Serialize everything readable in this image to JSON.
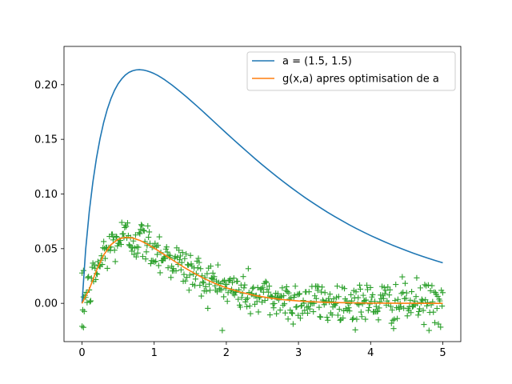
{
  "chart_data": {
    "type": "line",
    "title": "",
    "xlabel": "",
    "ylabel": "",
    "xlim": [
      -0.25,
      5.25
    ],
    "ylim": [
      -0.035,
      0.235
    ],
    "grid": false,
    "legend_position": "top-right",
    "x_ticks": [
      0,
      1,
      2,
      3,
      4,
      5
    ],
    "x_tick_labels": [
      "0",
      "1",
      "2",
      "3",
      "4",
      "5"
    ],
    "y_ticks": [
      0.0,
      0.05,
      0.1,
      0.15,
      0.2
    ],
    "y_tick_labels": [
      "0.00",
      "0.05",
      "0.10",
      "0.15",
      "0.20"
    ],
    "series": [
      {
        "name": "a = (1.5, 1.5)",
        "kind": "line",
        "color": "#1f77b4",
        "x": [
          0,
          0.05,
          0.1,
          0.15,
          0.2,
          0.25,
          0.3,
          0.35,
          0.4,
          0.45,
          0.5,
          0.55,
          0.6,
          0.65,
          0.7,
          0.75,
          0.8,
          0.85,
          0.9,
          0.95,
          1.0,
          1.05,
          1.1,
          1.15,
          1.2,
          1.25,
          1.3,
          1.35,
          1.4,
          1.45,
          1.5,
          1.6,
          1.7,
          1.8,
          1.9,
          2.0,
          2.1,
          2.2,
          2.3,
          2.4,
          2.5,
          2.6,
          2.7,
          2.8,
          2.9,
          3.0,
          3.1,
          3.2,
          3.3,
          3.4,
          3.5,
          3.6,
          3.7,
          3.8,
          3.9,
          4.0,
          4.1,
          4.2,
          4.3,
          4.4,
          4.5,
          4.6,
          4.7,
          4.8,
          4.9,
          5.0
        ],
        "y": [
          0,
          0.049,
          0.0837,
          0.1108,
          0.1328,
          0.1508,
          0.1655,
          0.1775,
          0.1871,
          0.1948,
          0.2008,
          0.2053,
          0.2088,
          0.2112,
          0.2127,
          0.2135,
          0.2137,
          0.2134,
          0.2126,
          0.2115,
          0.2101,
          0.2084,
          0.2064,
          0.2043,
          0.2019,
          0.1995,
          0.1969,
          0.1942,
          0.1915,
          0.1887,
          0.1858,
          0.18,
          0.174,
          0.1679,
          0.1618,
          0.1557,
          0.1497,
          0.1438,
          0.138,
          0.1322,
          0.1266,
          0.1212,
          0.1159,
          0.1108,
          0.1058,
          0.101,
          0.0963,
          0.0919,
          0.0876,
          0.0834,
          0.0795,
          0.0757,
          0.072,
          0.0685,
          0.0652,
          0.062,
          0.059,
          0.0561,
          0.0533,
          0.0507,
          0.0481,
          0.0457,
          0.0434,
          0.0412,
          0.0391,
          0.0371
        ]
      },
      {
        "name": "g(x,a) apres optimisation de a",
        "kind": "line",
        "color": "#ff7f0e",
        "x": [
          0,
          0.1,
          0.2,
          0.3,
          0.4,
          0.5,
          0.6,
          0.7,
          0.8,
          0.9,
          1.0,
          1.1,
          1.2,
          1.3,
          1.4,
          1.5,
          1.6,
          1.7,
          1.8,
          1.9,
          2.0,
          2.2,
          2.4,
          2.6,
          2.8,
          3.0,
          3.2,
          3.4,
          3.6,
          3.8,
          4.0,
          4.2,
          4.4,
          4.6,
          4.8,
          5.0
        ],
        "y": [
          0,
          0.0128,
          0.0301,
          0.0442,
          0.0536,
          0.0586,
          0.0604,
          0.0598,
          0.0576,
          0.0543,
          0.0505,
          0.0463,
          0.042,
          0.0377,
          0.0335,
          0.0296,
          0.0259,
          0.0225,
          0.0194,
          0.0167,
          0.0142,
          0.0102,
          0.0071,
          0.0049,
          0.0033,
          0.0022,
          0.0014,
          0.0009,
          0.0006,
          0.0004,
          0.0002,
          0.0002,
          0.0001,
          0.0001,
          0.0,
          0.0
        ]
      },
      {
        "name": "",
        "kind": "scatter",
        "marker": "+",
        "color": "#2ca02c",
        "count": 500,
        "x_range": [
          0,
          5
        ],
        "noise_sd": 0.01,
        "outliers": [
          [
            0.02,
            -0.022
          ],
          [
            0.0,
            -0.021
          ],
          [
            0.02,
            0.03
          ]
        ]
      }
    ]
  }
}
